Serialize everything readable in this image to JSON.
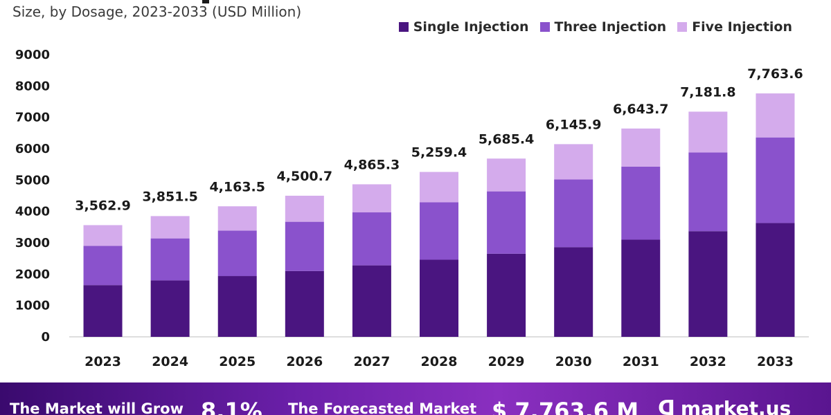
{
  "header": {
    "subtitle": "Size, by Dosage, 2023-2033 (USD Million)"
  },
  "legend": [
    {
      "label": "Single Injection",
      "color": "#4a1580"
    },
    {
      "label": "Three Injection",
      "color": "#8a52cc"
    },
    {
      "label": "Five Injection",
      "color": "#d4abec"
    }
  ],
  "chart_data": {
    "type": "bar",
    "stacked": true,
    "categories": [
      "2023",
      "2024",
      "2025",
      "2026",
      "2027",
      "2028",
      "2029",
      "2030",
      "2031",
      "2032",
      "2033"
    ],
    "series": [
      {
        "name": "Single Injection",
        "values": [
          1650,
          1800,
          1940,
          2100,
          2280,
          2460,
          2650,
          2860,
          3100,
          3370,
          3630
        ]
      },
      {
        "name": "Three Injection",
        "values": [
          1250,
          1340,
          1450,
          1570,
          1690,
          1830,
          1990,
          2160,
          2330,
          2510,
          2730
        ]
      },
      {
        "name": "Five Injection",
        "values": [
          662.9,
          711.5,
          773.5,
          830.7,
          895.3,
          969.4,
          1045.4,
          1125.9,
          1213.7,
          1301.8,
          1403.6
        ]
      }
    ],
    "totals": [
      3562.9,
      3851.5,
      4163.5,
      4500.7,
      4865.3,
      5259.4,
      5685.4,
      6145.9,
      6643.7,
      7181.8,
      7763.6
    ],
    "total_labels": [
      "3,562.9",
      "3,851.5",
      "4,163.5",
      "4,500.7",
      "4,865.3",
      "5,259.4",
      "5,685.4",
      "6,145.9",
      "6,643.7",
      "7,181.8",
      "7,763.6"
    ],
    "y_ticks": [
      0,
      1000,
      2000,
      3000,
      4000,
      5000,
      6000,
      7000,
      8000,
      9000
    ],
    "ylim": [
      0,
      9000
    ],
    "grid": false,
    "legend_position": "top-right"
  },
  "footer": {
    "grow_text": "The Market will Grow",
    "cagr": "8.1%",
    "forecast_text": "The Forecasted Market",
    "value": "$ 7,763.6 M",
    "logo": "market.us",
    "logo_icon": "market-us-logo-icon"
  }
}
